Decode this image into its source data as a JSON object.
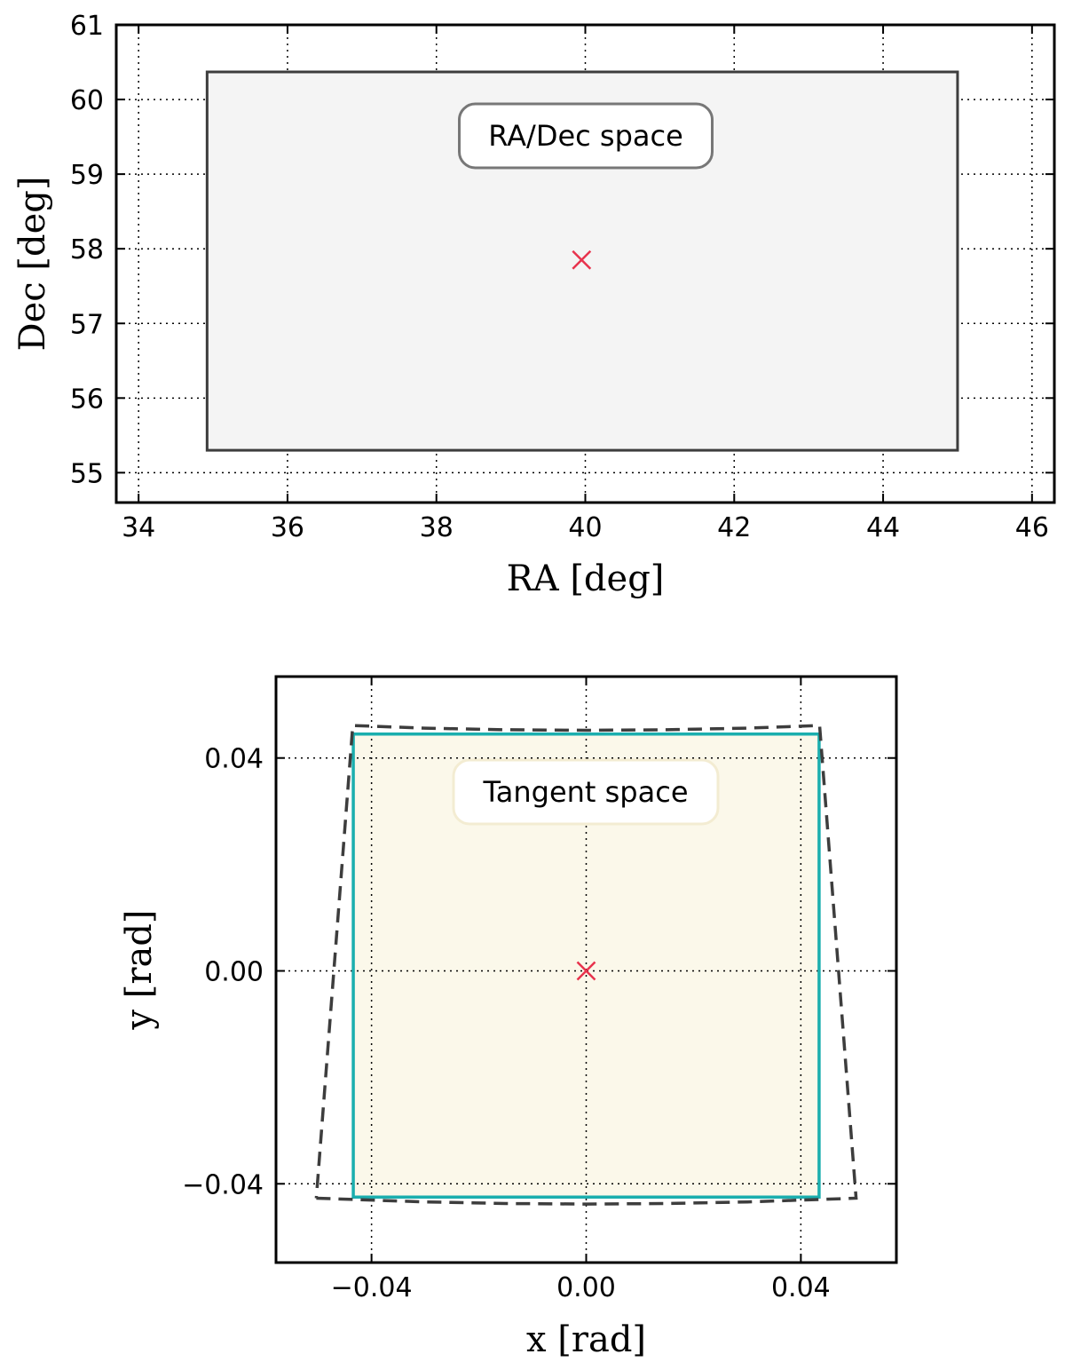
{
  "chart_data": [
    {
      "type": "area",
      "xlabel": "RA [deg]",
      "ylabel": "Dec [deg]",
      "xlim": [
        33.7,
        46.3
      ],
      "ylim": [
        54.6,
        61
      ],
      "xticks": [
        34,
        36,
        38,
        40,
        42,
        44,
        46
      ],
      "yticks": [
        55,
        56,
        57,
        58,
        59,
        60,
        61
      ],
      "grid": true,
      "annotation": "RA/Dec space",
      "region": {
        "x": [
          34.92,
          45.0,
          45.0,
          34.92
        ],
        "y": [
          55.3,
          55.3,
          60.37,
          60.37
        ],
        "fill": "#f4f4f4",
        "stroke": "#3d3d3d"
      },
      "center": {
        "x": 39.95,
        "y": 57.85,
        "marker": "x",
        "color": "#e8334d"
      }
    },
    {
      "type": "area",
      "xlabel": "x [rad]",
      "ylabel": "y [rad]",
      "xlim": [
        -0.0578,
        0.0578
      ],
      "ylim": [
        -0.0548,
        0.0553
      ],
      "xticks": [
        -0.04,
        0.0,
        0.04
      ],
      "xtick_labels": [
        "−0.04",
        "0.00",
        "0.04"
      ],
      "yticks": [
        -0.04,
        0.0,
        0.04
      ],
      "ytick_labels": [
        "−0.04",
        "0.00",
        "0.04"
      ],
      "grid": true,
      "annotation": "Tangent space",
      "projected_region": {
        "style": "dashed",
        "color": "#3d3d3d",
        "x": [
          -0.0503,
          -0.03,
          -0.015,
          0.0,
          0.015,
          0.03,
          0.0503,
          0.0435,
          0.03,
          0.015,
          0.0,
          -0.015,
          -0.03,
          -0.0435,
          -0.0503
        ],
        "y": [
          -0.0427,
          -0.0434,
          -0.0437,
          -0.0438,
          -0.0437,
          -0.0434,
          -0.0427,
          0.0461,
          0.0456,
          0.0453,
          0.0452,
          0.0453,
          0.0456,
          0.0461,
          -0.0427
        ]
      },
      "bounding_box": {
        "x": [
          -0.0434,
          0.0434,
          0.0434,
          -0.0434
        ],
        "y": [
          -0.0425,
          -0.0425,
          0.0445,
          0.0445
        ],
        "fill": "#fbf8ea",
        "stroke": "#1aaeae"
      },
      "center": {
        "x": 0.0,
        "y": 0.0,
        "marker": "x",
        "color": "#e8334d"
      }
    }
  ]
}
